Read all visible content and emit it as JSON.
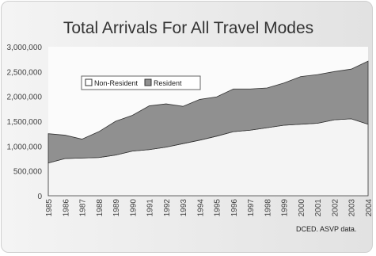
{
  "chart_data": {
    "type": "area",
    "stacked": true,
    "title": "Total Arrivals For All Travel Modes",
    "source": "DCED. ASVP data.",
    "x": [
      "1985",
      "1986",
      "1987",
      "1988",
      "1989",
      "1990",
      "1991",
      "1992",
      "1993",
      "1994",
      "1995",
      "1996",
      "1997",
      "1998",
      "1999",
      "2000",
      "2001",
      "2002",
      "2003",
      "2004"
    ],
    "ylim": [
      0,
      3000000
    ],
    "yticks": [
      "0",
      "500,000",
      "1,000,000",
      "1,500,000",
      "2,000,000",
      "2,500,000",
      "3,000,000"
    ],
    "ytick_values": [
      0,
      500000,
      1000000,
      1500000,
      2000000,
      2500000,
      3000000
    ],
    "legend_position": "top-left",
    "series": [
      {
        "name": "Non-Resident",
        "color": "#f4f4f4",
        "values": [
          660000,
          750000,
          760000,
          770000,
          820000,
          900000,
          930000,
          980000,
          1050000,
          1120000,
          1200000,
          1290000,
          1320000,
          1370000,
          1420000,
          1440000,
          1460000,
          1530000,
          1550000,
          1440000
        ]
      },
      {
        "name": "Resident",
        "color": "#909090",
        "values": [
          590000,
          470000,
          380000,
          520000,
          680000,
          720000,
          880000,
          870000,
          750000,
          820000,
          790000,
          860000,
          830000,
          800000,
          850000,
          960000,
          980000,
          970000,
          1000000,
          1270000
        ]
      }
    ]
  }
}
